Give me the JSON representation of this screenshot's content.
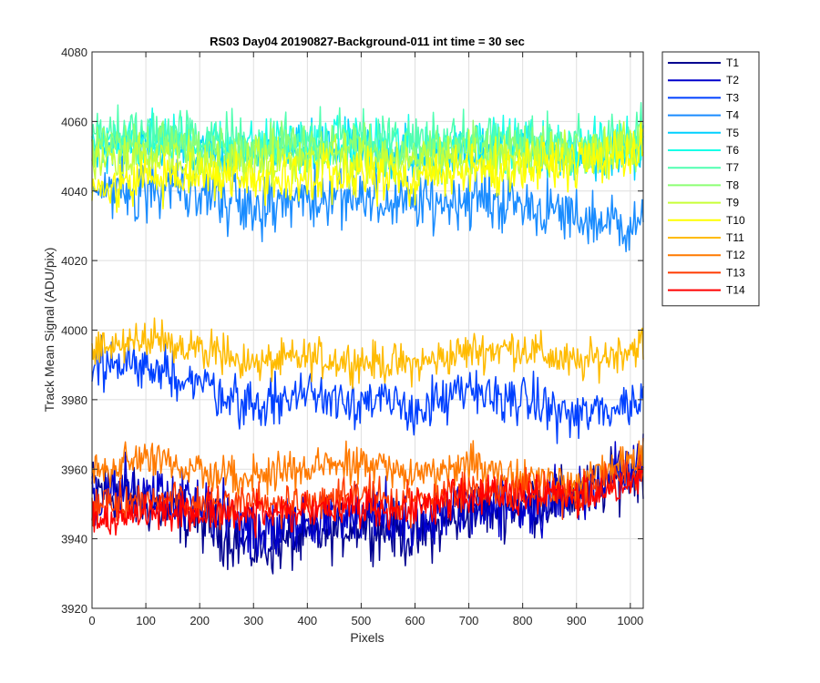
{
  "chart_data": {
    "type": "line",
    "title": "RS03 Day04 20190827-Background-011 int time = 30 sec",
    "xlabel": "Pixels",
    "ylabel": "Track Mean Signal (ADU/pix)",
    "xlim": [
      0,
      1024
    ],
    "ylim": [
      3920,
      4080
    ],
    "xticks": [
      "0",
      "100",
      "200",
      "300",
      "400",
      "500",
      "600",
      "700",
      "800",
      "900",
      "1000"
    ],
    "yticks": [
      "3920",
      "3940",
      "3960",
      "3980",
      "4000",
      "4020",
      "4040",
      "4060",
      "4080"
    ],
    "grid": true,
    "legend_position": "outside-right-top",
    "series": [
      {
        "name": "T1",
        "color": "#00008f",
        "x": [
          0,
          100,
          200,
          300,
          400,
          500,
          600,
          700,
          800,
          900,
          1024
        ],
        "values": [
          3955,
          3950,
          3945,
          3937,
          3940,
          3945,
          3940,
          3948,
          3950,
          3952,
          3960
        ],
        "noise": 6
      },
      {
        "name": "T2",
        "color": "#0000cc",
        "x": [
          0,
          100,
          200,
          300,
          400,
          500,
          600,
          700,
          800,
          900,
          1024
        ],
        "values": [
          3952,
          3955,
          3950,
          3942,
          3944,
          3948,
          3945,
          3950,
          3948,
          3952,
          3965
        ],
        "noise": 6
      },
      {
        "name": "T3",
        "color": "#0040ff",
        "x": [
          0,
          100,
          200,
          300,
          400,
          500,
          600,
          700,
          800,
          900,
          1024
        ],
        "values": [
          3990,
          3990,
          3985,
          3978,
          3982,
          3980,
          3977,
          3982,
          3980,
          3975,
          3980
        ],
        "noise": 5
      },
      {
        "name": "T4",
        "color": "#1a8cff",
        "x": [
          0,
          100,
          200,
          300,
          400,
          500,
          600,
          700,
          800,
          900,
          1024
        ],
        "values": [
          4040,
          4042,
          4040,
          4036,
          4038,
          4037,
          4036,
          4038,
          4036,
          4032,
          4030
        ],
        "noise": 6
      },
      {
        "name": "T5",
        "color": "#00d0ff",
        "x": [
          0,
          100,
          200,
          300,
          400,
          500,
          600,
          700,
          800,
          900,
          1024
        ],
        "values": [
          4052,
          4054,
          4052,
          4050,
          4052,
          4052,
          4050,
          4052,
          4052,
          4050,
          4052
        ],
        "noise": 5
      },
      {
        "name": "T6",
        "color": "#17ffe8",
        "x": [
          0,
          100,
          200,
          300,
          400,
          500,
          600,
          700,
          800,
          900,
          1024
        ],
        "values": [
          4055,
          4056,
          4054,
          4053,
          4054,
          4054,
          4053,
          4054,
          4054,
          4052,
          4055
        ],
        "noise": 5
      },
      {
        "name": "T7",
        "color": "#50ffb0",
        "x": [
          0,
          100,
          200,
          300,
          400,
          500,
          600,
          700,
          800,
          900,
          1024
        ],
        "values": [
          4056,
          4057,
          4055,
          4054,
          4055,
          4055,
          4054,
          4055,
          4055,
          4053,
          4056
        ],
        "noise": 5
      },
      {
        "name": "T8",
        "color": "#8cff73",
        "x": [
          0,
          100,
          200,
          300,
          400,
          500,
          600,
          700,
          800,
          900,
          1024
        ],
        "values": [
          4053,
          4054,
          4052,
          4051,
          4052,
          4052,
          4051,
          4052,
          4052,
          4051,
          4054
        ],
        "noise": 5
      },
      {
        "name": "T9",
        "color": "#c8ff37",
        "x": [
          0,
          100,
          200,
          300,
          400,
          500,
          600,
          700,
          800,
          900,
          1024
        ],
        "values": [
          4048,
          4050,
          4049,
          4048,
          4049,
          4049,
          4048,
          4050,
          4050,
          4050,
          4055
        ],
        "noise": 5
      },
      {
        "name": "T10",
        "color": "#ffff00",
        "x": [
          0,
          100,
          200,
          300,
          400,
          500,
          600,
          700,
          800,
          900,
          1024
        ],
        "values": [
          4040,
          4043,
          4045,
          4043,
          4045,
          4045,
          4044,
          4046,
          4047,
          4048,
          4052
        ],
        "noise": 5
      },
      {
        "name": "T11",
        "color": "#ffbb00",
        "x": [
          0,
          100,
          200,
          300,
          400,
          500,
          600,
          700,
          800,
          900,
          1024
        ],
        "values": [
          3995,
          3997,
          3995,
          3990,
          3992,
          3991,
          3990,
          3994,
          3995,
          3990,
          3996
        ],
        "noise": 4
      },
      {
        "name": "T12",
        "color": "#ff7a00",
        "x": [
          0,
          100,
          200,
          300,
          400,
          500,
          600,
          700,
          800,
          900,
          1024
        ],
        "values": [
          3960,
          3962,
          3960,
          3958,
          3960,
          3962,
          3958,
          3962,
          3958,
          3956,
          3965
        ],
        "noise": 4
      },
      {
        "name": "T13",
        "color": "#ff3a00",
        "x": [
          0,
          100,
          200,
          300,
          400,
          500,
          600,
          700,
          800,
          900,
          1024
        ],
        "values": [
          3950,
          3952,
          3950,
          3950,
          3950,
          3952,
          3950,
          3955,
          3953,
          3952,
          3960
        ],
        "noise": 4
      },
      {
        "name": "T14",
        "color": "#ff0000",
        "x": [
          0,
          100,
          200,
          300,
          400,
          500,
          600,
          700,
          800,
          900,
          1024
        ],
        "values": [
          3945,
          3948,
          3947,
          3947,
          3948,
          3949,
          3948,
          3953,
          3952,
          3952,
          3958
        ],
        "noise": 4
      }
    ]
  }
}
